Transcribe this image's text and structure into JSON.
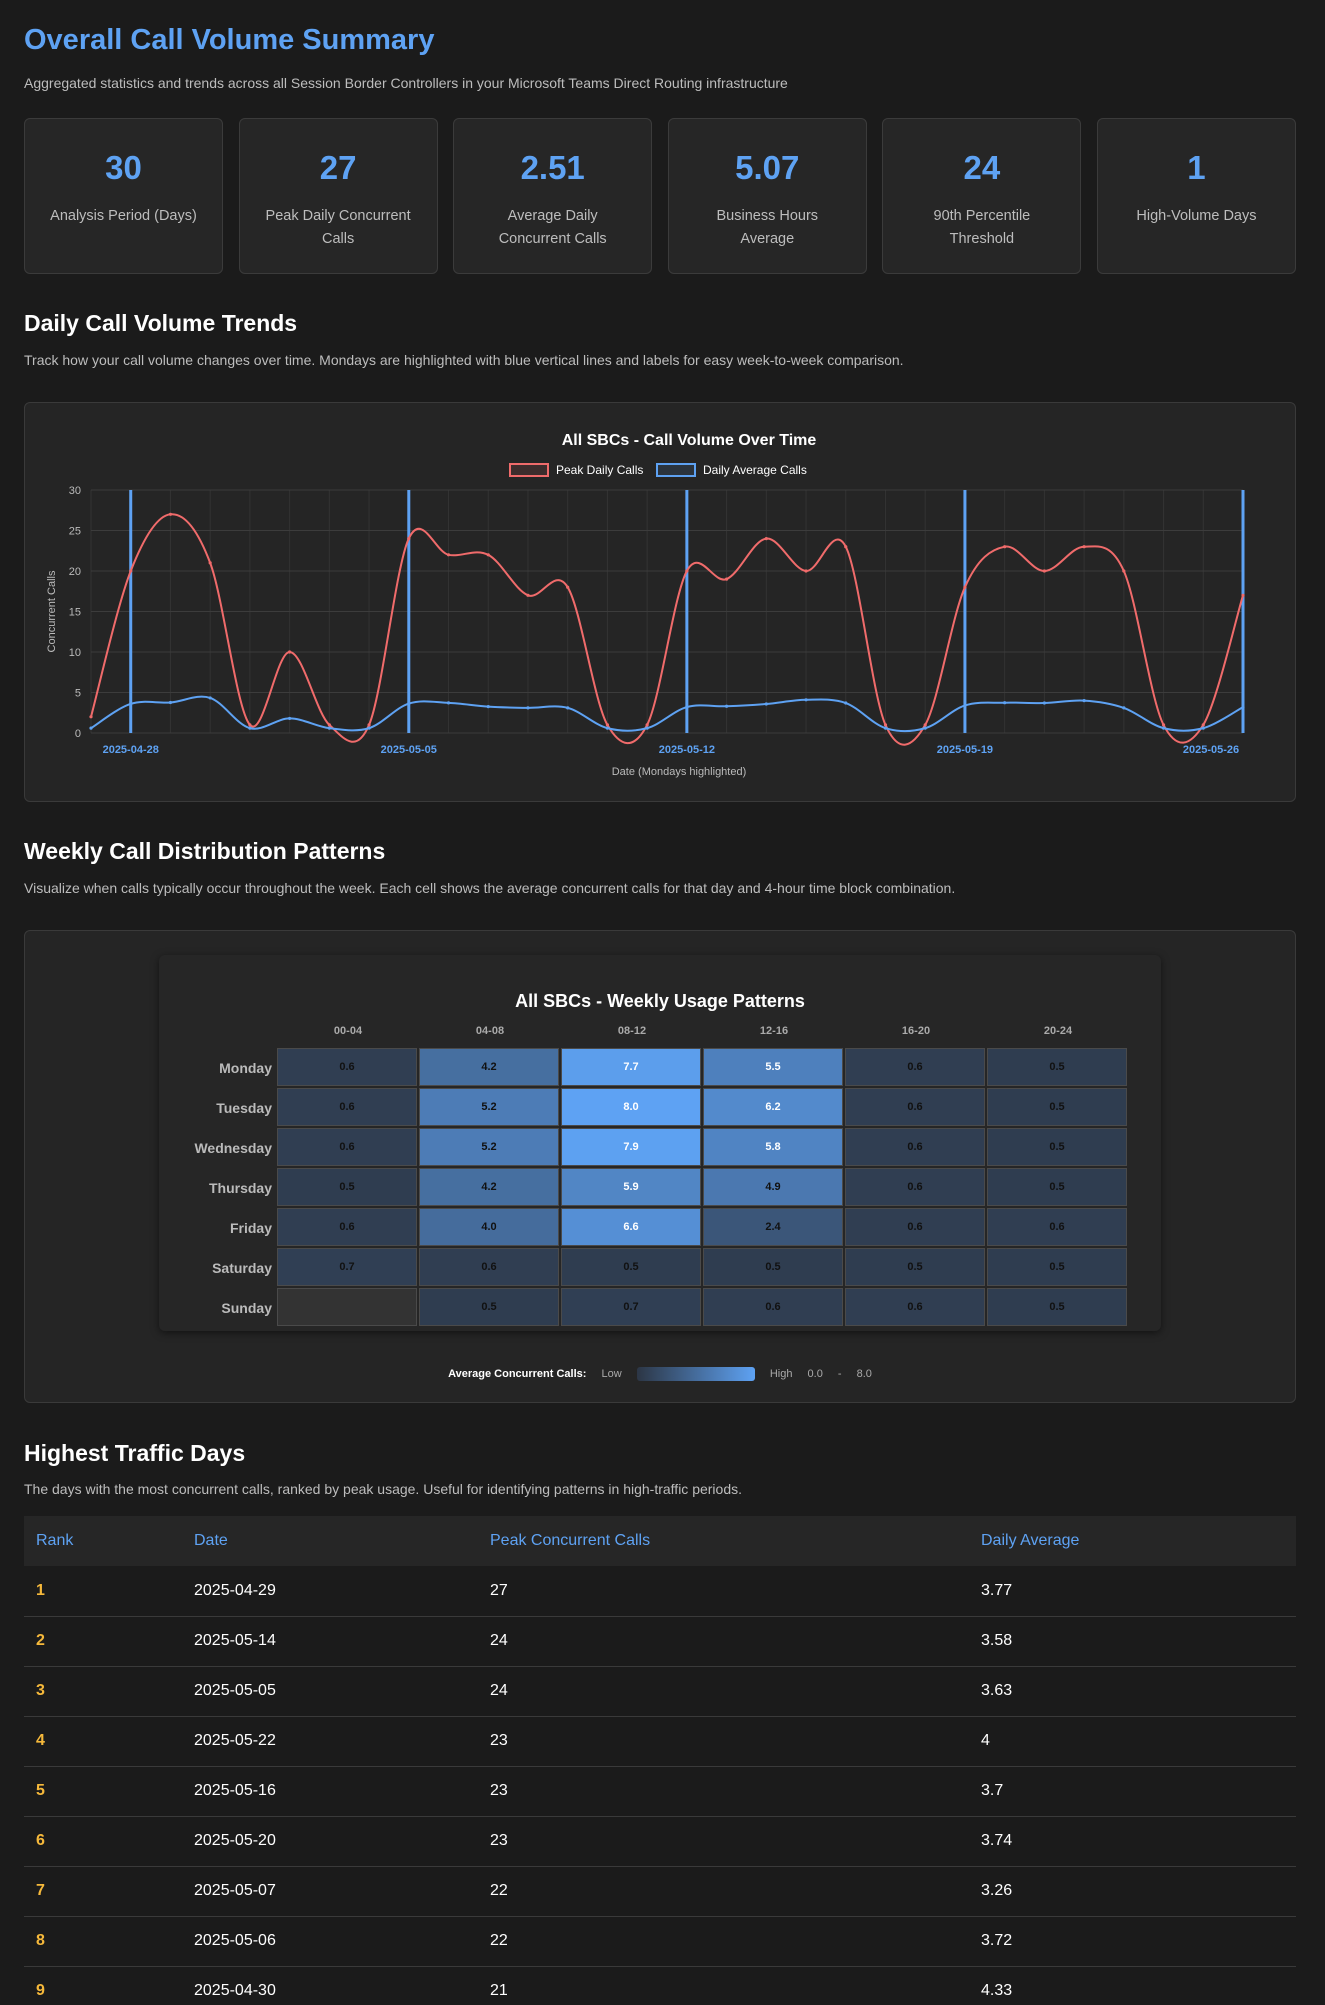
{
  "header": {
    "title": "Overall Call Volume Summary",
    "subtitle": "Aggregated statistics and trends across all Session Border Controllers in your Microsoft Teams Direct Routing infrastructure"
  },
  "stats": [
    {
      "value": "30",
      "label": "Analysis Period (Days)"
    },
    {
      "value": "27",
      "label": "Peak Daily Concurrent Calls"
    },
    {
      "value": "2.51",
      "label": "Average Daily Concurrent Calls"
    },
    {
      "value": "5.07",
      "label": "Business Hours Average"
    },
    {
      "value": "24",
      "label": "90th Percentile Threshold"
    },
    {
      "value": "1",
      "label": "High-Volume Days"
    }
  ],
  "trends": {
    "title": "Daily Call Volume Trends",
    "description": "Track how your call volume changes over time. Mondays are highlighted with blue vertical lines and labels for easy week-to-week comparison."
  },
  "chart_data": {
    "type": "line",
    "title": "All SBCs - Call Volume Over Time",
    "xlabel": "Date (Mondays highlighted)",
    "ylabel": "Concurrent Calls",
    "ylim": [
      0,
      30
    ],
    "yticks": [
      "0",
      "5",
      "10",
      "15",
      "20",
      "25",
      "30"
    ],
    "x": [
      "2025-04-27",
      "2025-04-28",
      "2025-04-29",
      "2025-04-30",
      "2025-05-01",
      "2025-05-02",
      "2025-05-03",
      "2025-05-04",
      "2025-05-05",
      "2025-05-06",
      "2025-05-07",
      "2025-05-08",
      "2025-05-09",
      "2025-05-10",
      "2025-05-11",
      "2025-05-12",
      "2025-05-13",
      "2025-05-14",
      "2025-05-15",
      "2025-05-16",
      "2025-05-17",
      "2025-05-18",
      "2025-05-19",
      "2025-05-20",
      "2025-05-21",
      "2025-05-22",
      "2025-05-23",
      "2025-05-24",
      "2025-05-25",
      "2025-05-26"
    ],
    "x_tick_labels": [
      "2025-04-28",
      "2025-05-05",
      "2025-05-12",
      "2025-05-19",
      "2025-05-26"
    ],
    "mondays": [
      "2025-04-28",
      "2025-05-05",
      "2025-05-12",
      "2025-05-19",
      "2025-05-26"
    ],
    "legend_position": "top",
    "grid": true,
    "series": [
      {
        "name": "Peak Daily Calls",
        "color": "#f06b6b",
        "values": [
          2,
          20,
          27,
          21,
          1,
          10,
          1,
          1,
          24,
          22,
          22,
          17,
          18,
          1,
          1,
          20,
          19,
          24,
          20,
          23,
          1,
          1,
          18,
          23,
          20,
          23,
          20,
          1,
          1,
          17
        ]
      },
      {
        "name": "Daily Average Calls",
        "color": "#5ea2f3",
        "values": [
          0.6,
          3.6,
          3.77,
          4.33,
          0.6,
          1.8,
          0.6,
          0.6,
          3.63,
          3.72,
          3.26,
          3.1,
          3.1,
          0.6,
          0.6,
          3.2,
          3.3,
          3.58,
          4.1,
          3.7,
          0.6,
          0.6,
          3.4,
          3.74,
          3.7,
          4.0,
          3.1,
          0.6,
          0.6,
          3.2
        ]
      }
    ]
  },
  "weekly": {
    "title": "Weekly Call Distribution Patterns",
    "description": "Visualize when calls typically occur throughout the week. Each cell shows the average concurrent calls for that day and 4-hour time block combination.",
    "heatmap_title": "All SBCs - Weekly Usage Patterns",
    "columns": [
      "00-04",
      "04-08",
      "08-12",
      "12-16",
      "16-20",
      "20-24"
    ],
    "rows": [
      {
        "day": "Monday",
        "values": [
          "0.6",
          "4.2",
          "7.7",
          "5.5",
          "0.6",
          "0.5"
        ]
      },
      {
        "day": "Tuesday",
        "values": [
          "0.6",
          "5.2",
          "8.0",
          "6.2",
          "0.6",
          "0.5"
        ]
      },
      {
        "day": "Wednesday",
        "values": [
          "0.6",
          "5.2",
          "7.9",
          "5.8",
          "0.6",
          "0.5"
        ]
      },
      {
        "day": "Thursday",
        "values": [
          "0.5",
          "4.2",
          "5.9",
          "4.9",
          "0.6",
          "0.5"
        ]
      },
      {
        "day": "Friday",
        "values": [
          "0.6",
          "4.0",
          "6.6",
          "2.4",
          "0.6",
          "0.6"
        ]
      },
      {
        "day": "Saturday",
        "values": [
          "0.7",
          "0.6",
          "0.5",
          "0.5",
          "0.5",
          "0.5"
        ]
      },
      {
        "day": "Sunday",
        "values": [
          "",
          "0.5",
          "0.7",
          "0.6",
          "0.6",
          "0.5"
        ]
      }
    ],
    "legend": {
      "title": "Average Concurrent Calls:",
      "low": "Low",
      "high": "High",
      "min": "0.0",
      "sep": "-",
      "max": "8.0"
    }
  },
  "traffic": {
    "title": "Highest Traffic Days",
    "description": "The days with the most concurrent calls, ranked by peak usage. Useful for identifying patterns in high-traffic periods.",
    "columns": [
      "Rank",
      "Date",
      "Peak Concurrent Calls",
      "Daily Average"
    ],
    "rows": [
      [
        "1",
        "2025-04-29",
        "27",
        "3.77"
      ],
      [
        "2",
        "2025-05-14",
        "24",
        "3.58"
      ],
      [
        "3",
        "2025-05-05",
        "24",
        "3.63"
      ],
      [
        "4",
        "2025-05-22",
        "23",
        "4"
      ],
      [
        "5",
        "2025-05-16",
        "23",
        "3.7"
      ],
      [
        "6",
        "2025-05-20",
        "23",
        "3.74"
      ],
      [
        "7",
        "2025-05-07",
        "22",
        "3.26"
      ],
      [
        "8",
        "2025-05-06",
        "22",
        "3.72"
      ],
      [
        "9",
        "2025-04-30",
        "21",
        "4.33"
      ]
    ]
  }
}
